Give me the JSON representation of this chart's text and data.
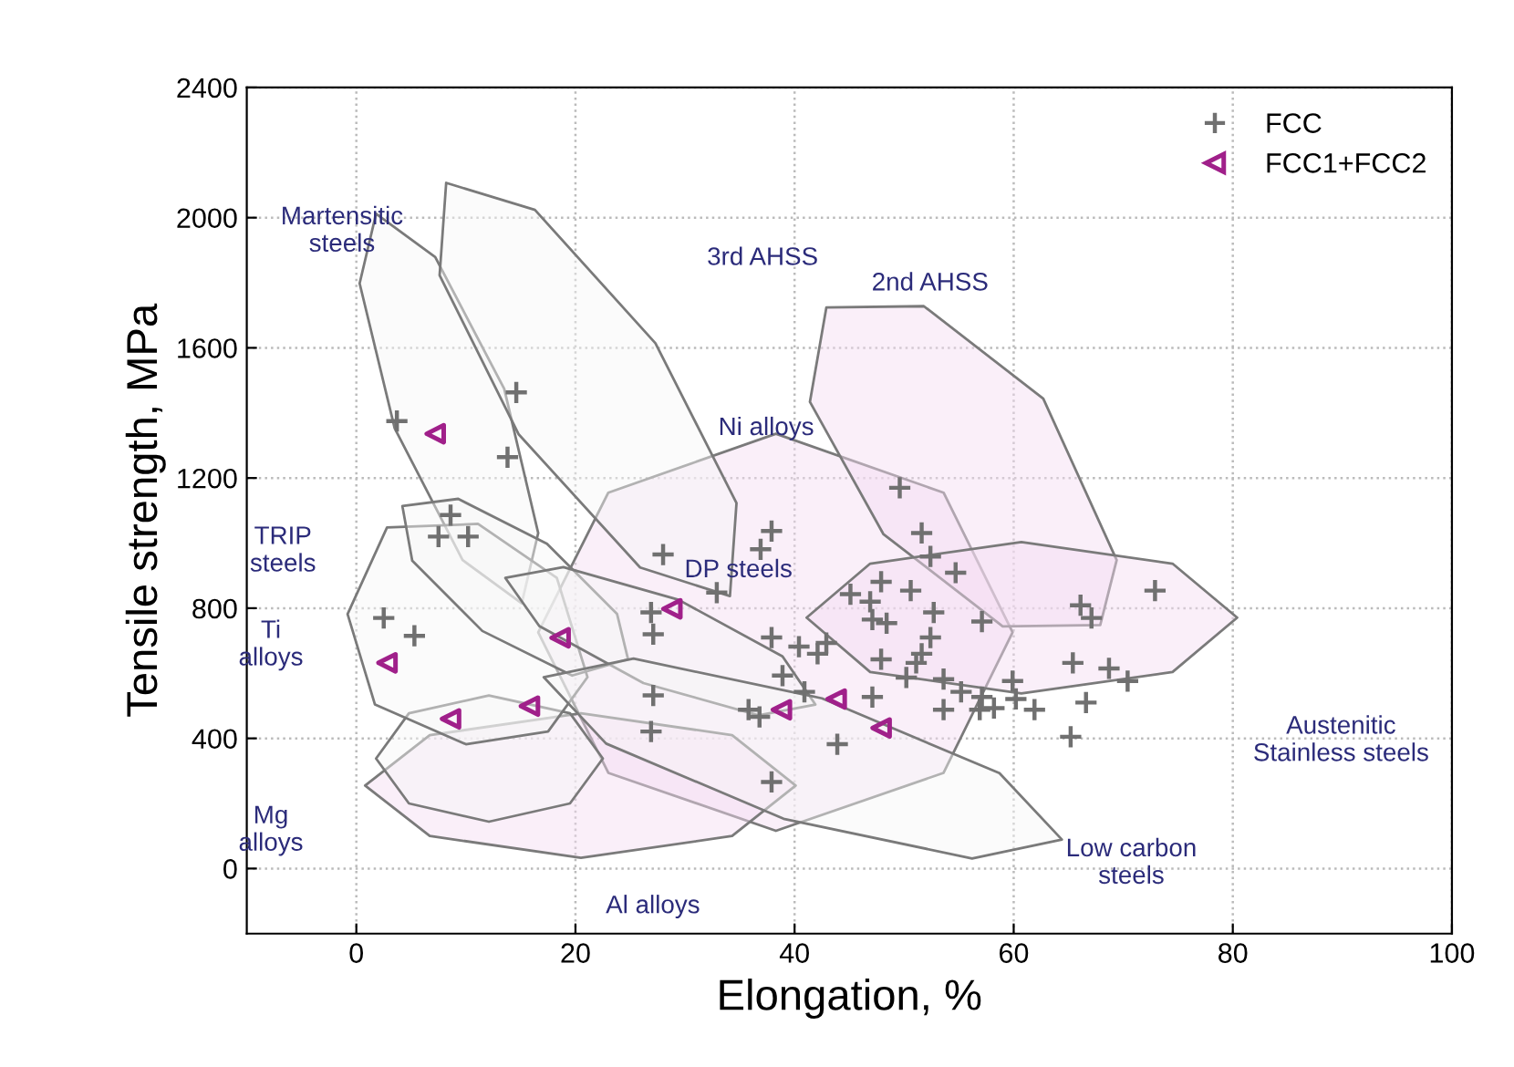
{
  "chart_data": {
    "type": "scatter",
    "xlabel": "Elongation, %",
    "ylabel": "Tensile strength, MPa",
    "xlim": [
      -10,
      100
    ],
    "ylim": [
      -200,
      2400
    ],
    "xticks": [
      0,
      20,
      40,
      60,
      80,
      100
    ],
    "yticks": [
      0,
      400,
      800,
      1200,
      1600,
      2000,
      2400
    ],
    "grid": true,
    "legend": "top right",
    "series": [
      {
        "type": "area",
        "color": "#f3dcf1",
        "x": [
          59.9,
          53.6,
          38.3,
          23.0,
          16.6,
          23.0,
          38.3,
          53.6
        ],
        "values": [
          726,
          1155,
          1336,
          1155,
          726,
          294,
          116,
          294
        ]
      },
      {
        "type": "area",
        "color": "#f3dcf1",
        "x": [
          67.9,
          69.4,
          62.7,
          51.8,
          42.9,
          41.4,
          48.1,
          59.0
        ],
        "values": [
          748,
          948,
          1444,
          1728,
          1724,
          1434,
          1028,
          744
        ]
      },
      {
        "type": "area",
        "color": "#f3dcf1",
        "x": [
          40.1,
          34.3,
          20.5,
          6.7,
          0.8,
          6.7,
          20.5,
          34.3
        ],
        "values": [
          255,
          410,
          477,
          410,
          255,
          100,
          33,
          100
        ]
      },
      {
        "type": "area",
        "color": "#f6f6f6",
        "x": [
          15.1,
          16.6,
          13.5,
          7.2,
          1.8,
          0.3,
          3.5,
          9.7
        ],
        "values": [
          815,
          1031,
          1474,
          1879,
          2012,
          1798,
          1353,
          948
        ]
      },
      {
        "type": "area",
        "color": "#f6f6f6",
        "x": [
          34.1,
          34.7,
          27.3,
          16.3,
          8.2,
          7.6,
          14.8,
          25.9
        ],
        "values": [
          837,
          1123,
          1614,
          2024,
          2107,
          1823,
          1335,
          925
        ]
      },
      {
        "type": "area",
        "color": "#f6f6f6",
        "x": [
          22.5,
          19.5,
          12.1,
          4.8,
          1.8,
          4.8,
          12.1,
          19.5
        ],
        "values": [
          338,
          477,
          532,
          477,
          338,
          200,
          144,
          200
        ]
      },
      {
        "type": "area",
        "color": "#f6f6f6",
        "x": [
          21.1,
          18.3,
          11.1,
          2.8,
          -0.8,
          1.7,
          10.0,
          17.5
        ],
        "values": [
          588,
          893,
          1059,
          1048,
          782,
          504,
          382,
          421
        ]
      },
      {
        "type": "area",
        "color": "#f6f6f6",
        "x": [
          24.8,
          23.8,
          17.4,
          9.3,
          4.2,
          5.1,
          11.5,
          19.7
        ],
        "values": [
          643,
          782,
          998,
          1136,
          1114,
          946,
          730,
          593
        ]
      },
      {
        "type": "area",
        "color": "#f6f6f6",
        "x": [
          41.9,
          38.9,
          29.4,
          18.9,
          13.6,
          16.7,
          26.2,
          36.7
        ],
        "values": [
          504,
          652,
          826,
          926,
          893,
          745,
          570,
          471
        ]
      },
      {
        "type": "area",
        "color": "#f6f6f6",
        "x": [
          64.4,
          58.7,
          42.5,
          25.3,
          17.1,
          22.8,
          39.0,
          56.2
        ],
        "values": [
          89,
          293,
          523,
          645,
          588,
          384,
          153,
          31
        ]
      },
      {
        "type": "area",
        "color": "#f3dcf1",
        "x": [
          80.4,
          74.5,
          60.7,
          46.9,
          41.1,
          46.9,
          60.7,
          74.5
        ],
        "values": [
          771,
          937,
          1003,
          937,
          771,
          604,
          538,
          604
        ]
      },
      {
        "name": "FCC",
        "color": "#707070",
        "marker": "cross",
        "x": [
          14.6,
          3.7,
          13.8,
          8.6,
          7.5,
          10.2,
          2.5,
          5.3,
          28,
          26.9,
          27.1,
          27.1,
          26.9,
          49.6,
          37.9,
          36.9,
          32.9,
          51.6,
          52.4,
          54.7,
          47.9,
          50.6,
          45.1,
          46.9,
          52.7,
          57.1,
          47.1,
          48.4,
          66.1,
          67.1,
          72.9,
          37.9,
          40.4,
          42.9,
          42.1,
          52.4,
          51.6,
          47.9,
          51.1,
          65.4,
          68.7,
          70.4,
          38.9,
          50.2,
          53.6,
          40.9,
          47.1,
          55.2,
          57.1,
          59.9,
          60.2,
          58.2,
          61.9,
          56.9,
          53.6,
          66.6,
          35.8,
          36.8,
          65.2,
          43.9,
          37.9
        ],
        "values": [
          1463,
          1375,
          1264,
          1086,
          1020,
          1020,
          770,
          715,
          965,
          787,
          720,
          532,
          421,
          1170,
          1037,
          981,
          848,
          1031,
          959,
          909,
          881,
          854,
          843,
          820,
          787,
          759,
          765,
          754,
          809,
          770,
          854,
          710,
          682,
          693,
          660,
          710,
          660,
          643,
          632,
          632,
          615,
          576,
          593,
          587,
          582,
          543,
          527,
          543,
          527,
          576,
          521,
          493,
          488,
          488,
          488,
          510,
          488,
          466,
          405,
          382,
          266
        ]
      },
      {
        "name": "FCC1+FCC2",
        "color": "#a0208a",
        "marker": "triangle",
        "x": [
          7.2,
          28.8,
          18.6,
          2.8,
          15.8,
          8.6,
          38.8,
          43.8,
          47.9
        ],
        "values": [
          1336,
          798,
          709,
          632,
          499,
          460,
          488,
          521,
          432
        ]
      }
    ],
    "annotations": [
      "Martensitic\nsteels",
      "3rd AHSS",
      "2nd AHSS",
      "Ni alloys",
      "TRIP\nsteels",
      "DP steels",
      "Ti\nalloys",
      "Austenitic\nStainless steels",
      "Mg\nalloys",
      "Low carbon\nsteels",
      "Al alloys"
    ]
  }
}
